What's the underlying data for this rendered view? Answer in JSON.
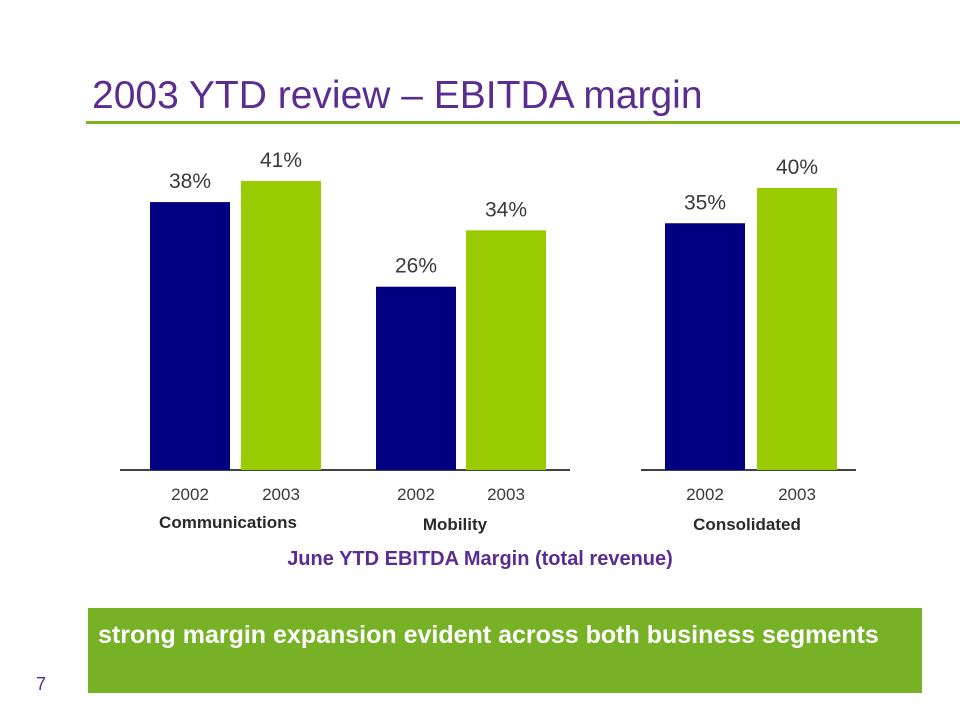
{
  "slide": {
    "title": "2003 YTD review – EBITDA margin",
    "caption": "June YTD EBITDA Margin (total revenue)",
    "callout": "strong margin expansion evident across both business segments",
    "page_number": "7"
  },
  "colors": {
    "series_2002": "#000080",
    "series_2003": "#99cc00",
    "title": "#5a2d91",
    "accent": "#7ab51d"
  },
  "chart_data": [
    {
      "type": "bar",
      "title": "",
      "xlabel": "Communications",
      "categories": [
        "2002",
        "2003"
      ],
      "values": [
        38,
        41
      ],
      "labels": [
        "38%",
        "41%"
      ],
      "ylim": [
        0,
        41
      ]
    },
    {
      "type": "bar",
      "title": "",
      "xlabel": "Mobility",
      "categories": [
        "2002",
        "2003"
      ],
      "values": [
        26,
        34
      ],
      "labels": [
        "26%",
        "34%"
      ],
      "ylim": [
        0,
        41
      ]
    },
    {
      "type": "bar",
      "title": "",
      "xlabel": "Consolidated",
      "categories": [
        "2002",
        "2003"
      ],
      "values": [
        35,
        40
      ],
      "labels": [
        "35%",
        "40%"
      ],
      "ylim": [
        0,
        41
      ]
    }
  ]
}
